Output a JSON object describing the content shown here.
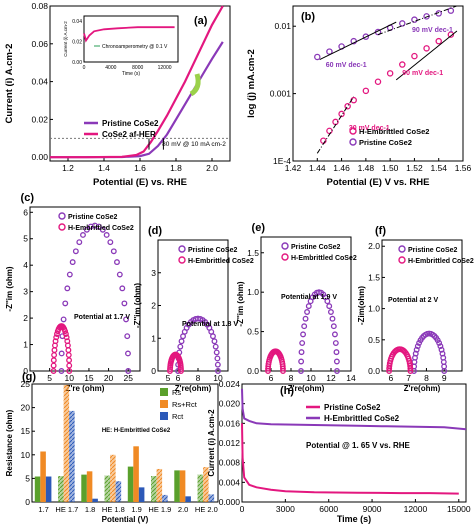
{
  "colors": {
    "magenta": "#e3177f",
    "purple": "#8a39b8",
    "axis": "#000000",
    "pink_light": "#f07bbd",
    "inset_green": "#2a9d55",
    "arrow_green": "#9bd14a",
    "Rs": "#5aa02c",
    "Rs_Rct": "#f08a24",
    "Rct": "#2c59b8"
  },
  "chart_data": [
    {
      "panel": "(a)",
      "type": "line",
      "xlabel": "Potential (E) vs. RHE",
      "ylabel": "Current (i) A.cm-2",
      "xlim": [
        1.1,
        2.1
      ],
      "ylim": [
        -0.002,
        0.08
      ],
      "xticks": [
        "1.2",
        "1.4",
        "1.6",
        "1.8",
        "2.0"
      ],
      "yticks": [
        "0.00",
        "0.02",
        "0.04",
        "0.06",
        "0.08"
      ],
      "series": [
        {
          "name": "Pristine CoSe2",
          "color": "purple",
          "x": [
            1.1,
            1.3,
            1.5,
            1.6,
            1.65,
            1.7,
            1.75,
            1.8,
            1.85,
            1.9,
            1.95,
            2.0,
            2.06
          ],
          "y": [
            0.0,
            0.0,
            0.0001,
            0.0006,
            0.0018,
            0.006,
            0.012,
            0.02,
            0.028,
            0.036,
            0.044,
            0.052,
            0.061
          ]
        },
        {
          "name": "CoSe2 af-HER",
          "color": "magenta",
          "x": [
            1.1,
            1.3,
            1.5,
            1.58,
            1.62,
            1.66,
            1.7,
            1.75,
            1.8,
            1.85,
            1.9,
            1.95,
            2.0,
            2.06
          ],
          "y": [
            0.0,
            0.0,
            0.0002,
            0.0012,
            0.003,
            0.008,
            0.014,
            0.022,
            0.031,
            0.04,
            0.05,
            0.06,
            0.07,
            0.08
          ]
        }
      ],
      "annotations": [
        "80 mV @ 10 mA cm-2"
      ],
      "inset": {
        "title": "Chronoamperometry @ 0.1 V",
        "xlabel": "Time (s)",
        "ylabel": "Current (i) A.cm-2",
        "xticks": [
          "0",
          "4000",
          "8000",
          "12000"
        ],
        "yticks": [
          "0.00",
          "0.02",
          "0.04"
        ],
        "xlim": [
          0,
          14000
        ],
        "ylim": [
          0,
          0.045
        ],
        "x": [
          0,
          300,
          800,
          1500,
          3000,
          5000,
          8000,
          11000,
          13500
        ],
        "y": [
          0.028,
          0.021,
          0.026,
          0.03,
          0.032,
          0.033,
          0.034,
          0.034,
          0.034
        ]
      }
    },
    {
      "panel": "(b)",
      "type": "scatter",
      "xlabel": "Potential (E) V vs. RHE",
      "ylabel": "log (j) mA.cm-2",
      "xlim": [
        1.42,
        1.56
      ],
      "ylim_log10": [
        -4,
        -1.7
      ],
      "yscale": "log",
      "xticks": [
        "1.42",
        "1.44",
        "1.46",
        "1.48",
        "1.50",
        "1.52",
        "1.54",
        "1.56"
      ],
      "yticks": [
        "1E-4",
        "0.001",
        "0.01"
      ],
      "series": [
        {
          "name": "H-Embrittled CoSe2",
          "color": "magenta",
          "x": [
            1.445,
            1.45,
            1.455,
            1.46,
            1.465,
            1.47,
            1.48,
            1.49,
            1.5,
            1.51,
            1.52,
            1.53,
            1.54,
            1.55
          ],
          "y": [
            0.0002,
            0.00028,
            0.00038,
            0.0005,
            0.00065,
            0.0008,
            0.0011,
            0.0015,
            0.002,
            0.0027,
            0.0036,
            0.0047,
            0.006,
            0.0075
          ]
        },
        {
          "name": "Pristine CoSe2",
          "color": "purple",
          "x": [
            1.44,
            1.45,
            1.46,
            1.47,
            1.48,
            1.49,
            1.5,
            1.51,
            1.52,
            1.53,
            1.54,
            1.55
          ],
          "y": [
            0.0035,
            0.0042,
            0.005,
            0.006,
            0.007,
            0.0082,
            0.0095,
            0.011,
            0.0125,
            0.014,
            0.0155,
            0.017
          ]
        }
      ],
      "annotations": [
        "60 mV dec-1",
        "90 mV dec-1",
        "90 mV dec-1",
        "30 mV dec-1"
      ]
    },
    {
      "panel": "(c)",
      "type": "scatter",
      "xlabel": "Z're (ohm)",
      "ylabel": "-Z''im (ohm)",
      "xlim": [
        0,
        28
      ],
      "ylim": [
        0,
        6.2
      ],
      "xticks": [
        "5",
        "10",
        "15",
        "20",
        "25"
      ],
      "yticks": [
        "0",
        "1",
        "2",
        "3",
        "4",
        "5",
        "6"
      ],
      "annotation": "Potential at 1.7 V",
      "series": [
        {
          "name": "Pristine CoSe2",
          "color": "purple",
          "arc": {
            "start": 8,
            "end": 25,
            "height": 5.5
          }
        },
        {
          "name": "H-Embrittled CoSe2",
          "color": "magenta",
          "arc": {
            "start": 6,
            "end": 10,
            "height": 1.7
          }
        }
      ]
    },
    {
      "panel": "(d)",
      "type": "scatter",
      "xlabel": "Z're(ohm)",
      "ylabel": "-Z''im (ohm)",
      "xlim": [
        4,
        11
      ],
      "ylim": [
        0,
        4
      ],
      "xticks": [
        "5",
        "6",
        "8",
        "10"
      ],
      "yticks": [
        "0",
        "1",
        "2",
        "3"
      ],
      "annotation": "Potential at 1.8 V",
      "series": [
        {
          "name": "Pristine CoSe2",
          "color": "purple",
          "arc": {
            "start": 6,
            "end": 10,
            "height": 1.6
          }
        },
        {
          "name": "H-Embrittled CoSe2",
          "color": "magenta",
          "arc": {
            "start": 5.2,
            "end": 6.3,
            "height": 0.5
          }
        }
      ]
    },
    {
      "panel": "(e)",
      "type": "scatter",
      "xlabel": "Z're(ohm)",
      "ylabel": "-Z''im (ohm)",
      "xlim": [
        5,
        14
      ],
      "ylim": [
        0,
        1.7
      ],
      "xticks": [
        "6",
        "8",
        "10",
        "12",
        "14"
      ],
      "yticks": [
        "0.0",
        "0.5",
        "1.0",
        "1.5"
      ],
      "annotation": "Potential at 1.9 V",
      "series": [
        {
          "name": "Pristine CoSe2",
          "color": "purple",
          "arc": {
            "start": 9,
            "end": 12.6,
            "height": 1.0
          }
        },
        {
          "name": "H-Embrittled CoSe2",
          "color": "magenta",
          "arc": {
            "start": 5.7,
            "end": 7.2,
            "height": 0.25
          }
        }
      ]
    },
    {
      "panel": "(f)",
      "type": "scatter",
      "xlabel": "Z're(ohm)",
      "ylabel": "-Zim(ohm)",
      "xlim": [
        5.5,
        10
      ],
      "ylim": [
        0,
        2.1
      ],
      "xticks": [
        "6",
        "7",
        "8",
        "9"
      ],
      "yticks": [
        "0.0",
        "0.5",
        "1.0",
        "1.5",
        "2.0"
      ],
      "annotation": "Potential at 2 V",
      "series": [
        {
          "name": "Pristine CoSe2",
          "color": "purple",
          "arc": {
            "start": 7.3,
            "end": 9.0,
            "height": 0.6
          }
        },
        {
          "name": "H-Embrittled CoSe2",
          "color": "magenta",
          "arc": {
            "start": 5.9,
            "end": 7.1,
            "height": 0.35
          }
        }
      ]
    },
    {
      "panel": "(g)",
      "type": "bar",
      "xlabel": "Potential (V)",
      "ylabel": "Resistance (ohm)",
      "ylim": [
        0,
        25
      ],
      "yticks": [
        "0",
        "5",
        "10",
        "15",
        "20",
        "25"
      ],
      "categories": [
        "1.7",
        "HE 1.7",
        "1.8",
        "HE 1.8",
        "1.9",
        "HE 1.9",
        "2.0",
        "HE 2.0"
      ],
      "hatched_categories": [
        "HE 1.7",
        "HE 1.8",
        "HE 1.9",
        "HE 2.0"
      ],
      "annotation": "HE: H-Embrittled CoSe2",
      "series": [
        {
          "name": "Rs",
          "color": "Rs",
          "values": [
            5.4,
            5.5,
            5.8,
            5.6,
            7.5,
            5.5,
            6.7,
            5.8
          ]
        },
        {
          "name": "Rs+Rct",
          "color": "Rs_Rct",
          "values": [
            10.7,
            24.8,
            6.5,
            10.0,
            11.8,
            7.0,
            6.7,
            7.4
          ]
        },
        {
          "name": "Rct",
          "color": "Rct",
          "values": [
            5.4,
            19.3,
            0.7,
            4.4,
            3.1,
            1.5,
            1.2,
            1.6
          ]
        }
      ]
    },
    {
      "panel": "(h)",
      "type": "line",
      "xlabel": "Time (s)",
      "ylabel": "Current (i) A.cm-2",
      "xlim": [
        0,
        15500
      ],
      "ylim": [
        0,
        0.024
      ],
      "xticks": [
        "0",
        "3000",
        "6000",
        "9000",
        "12000",
        "15000"
      ],
      "yticks": [
        "0.000",
        "0.004",
        "0.008",
        "0.012",
        "0.016",
        "0.020",
        "0.024"
      ],
      "annotation": "Potential @ 1. 65 V vs. RHE",
      "series": [
        {
          "name": "Pristine CoSe2",
          "color": "magenta",
          "x": [
            0,
            40,
            150,
            500,
            1000,
            2000,
            3000,
            5000,
            8000,
            11000,
            13000,
            15000
          ],
          "y": [
            0.016,
            0.009,
            0.005,
            0.0035,
            0.003,
            0.0025,
            0.0022,
            0.002,
            0.0019,
            0.0018,
            0.0018,
            0.0017
          ]
        },
        {
          "name": "H-Embrittled CoSe2",
          "color": "purple",
          "x": [
            0,
            40,
            150,
            500,
            1000,
            2000,
            4000,
            6000,
            8000,
            10000,
            12000,
            14000,
            15500
          ],
          "y": [
            0.023,
            0.019,
            0.017,
            0.0165,
            0.016,
            0.0158,
            0.0157,
            0.0156,
            0.0155,
            0.0154,
            0.0153,
            0.0152,
            0.0148
          ]
        }
      ]
    }
  ]
}
